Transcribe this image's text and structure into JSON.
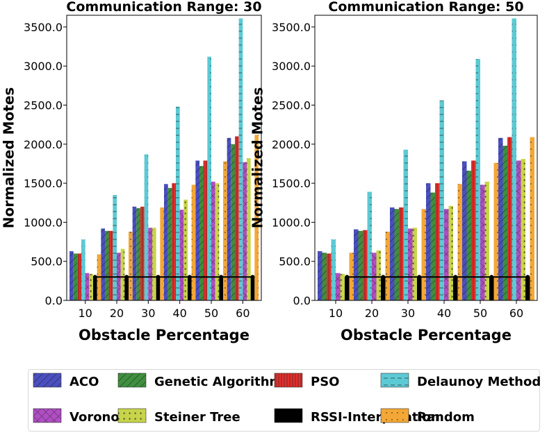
{
  "chart_data": [
    {
      "type": "bar",
      "title": "Communication Range: 30",
      "xlabel": "Obstacle Percentage",
      "ylabel": "Normalized Motes",
      "categories": [
        "10",
        "20",
        "30",
        "40",
        "50",
        "60"
      ],
      "ylim": [
        0,
        3650
      ],
      "yticks": [
        "0.0",
        "500.0",
        "1000.0",
        "1500.0",
        "2000.0",
        "2500.0",
        "3000.0",
        "3500.0"
      ],
      "grid": false,
      "series": [
        {
          "name": "ACO",
          "values": [
            630,
            920,
            1200,
            1490,
            1790,
            2080
          ]
        },
        {
          "name": "Genetic Algorithms",
          "values": [
            600,
            890,
            1180,
            1440,
            1720,
            2000
          ]
        },
        {
          "name": "PSO",
          "values": [
            600,
            890,
            1200,
            1500,
            1790,
            2100
          ]
        },
        {
          "name": "Delaunoy Method",
          "values": [
            780,
            1350,
            1870,
            2480,
            3120,
            3610
          ]
        },
        {
          "name": "Voronoi",
          "values": [
            350,
            610,
            930,
            1160,
            1520,
            1770
          ]
        },
        {
          "name": "Steiner Tree",
          "values": [
            340,
            660,
            930,
            1290,
            1500,
            1820
          ]
        },
        {
          "name": "RSSI-Interpolation",
          "values": [
            300,
            300,
            300,
            300,
            300,
            300
          ]
        },
        {
          "name": "Random",
          "values": [
            590,
            880,
            1190,
            1480,
            1780,
            2120
          ]
        }
      ]
    },
    {
      "type": "bar",
      "title": "Communication Range: 50",
      "xlabel": "Obstacle Percentage",
      "ylabel": "Normalized Motes",
      "categories": [
        "10",
        "20",
        "30",
        "40",
        "50",
        "60"
      ],
      "ylim": [
        0,
        3650
      ],
      "yticks": [
        "0.0",
        "500.0",
        "1000.0",
        "1500.0",
        "2000.0",
        "2500.0",
        "3000.0",
        "3500.0"
      ],
      "grid": false,
      "series": [
        {
          "name": "ACO",
          "values": [
            630,
            910,
            1190,
            1500,
            1780,
            2080
          ]
        },
        {
          "name": "Genetic Algorithms",
          "values": [
            610,
            890,
            1170,
            1380,
            1660,
            1980
          ]
        },
        {
          "name": "PSO",
          "values": [
            600,
            900,
            1190,
            1500,
            1790,
            2090
          ]
        },
        {
          "name": "Delaunoy Method",
          "values": [
            780,
            1390,
            1930,
            2560,
            3090,
            3610
          ]
        },
        {
          "name": "Voronoi",
          "values": [
            350,
            610,
            920,
            1170,
            1480,
            1790
          ]
        },
        {
          "name": "Steiner Tree",
          "values": [
            340,
            640,
            930,
            1210,
            1520,
            1810
          ]
        },
        {
          "name": "RSSI-Interpolation",
          "values": [
            300,
            300,
            300,
            300,
            300,
            300
          ]
        },
        {
          "name": "Random",
          "values": [
            610,
            880,
            1170,
            1490,
            1760,
            2090
          ]
        }
      ]
    }
  ],
  "legend": {
    "placement": "bottom",
    "items": [
      {
        "label": "ACO",
        "color": "#4a4fc0",
        "hatch": "diag"
      },
      {
        "label": "Genetic Algorithms",
        "color": "#3f8f3f",
        "hatch": "diag"
      },
      {
        "label": "PSO",
        "color": "#e0302c",
        "hatch": "vert"
      },
      {
        "label": "Delaunoy Method",
        "color": "#5ccad4",
        "hatch": "horiz"
      },
      {
        "label": "Voronoi",
        "color": "#b04ec4",
        "hatch": "cross"
      },
      {
        "label": "Steiner Tree",
        "color": "#c8d44a",
        "hatch": "star"
      },
      {
        "label": "RSSI-Interpolation",
        "color": "#000000",
        "hatch": "none"
      },
      {
        "label": "Random",
        "color": "#f4a736",
        "hatch": "dots"
      }
    ]
  }
}
